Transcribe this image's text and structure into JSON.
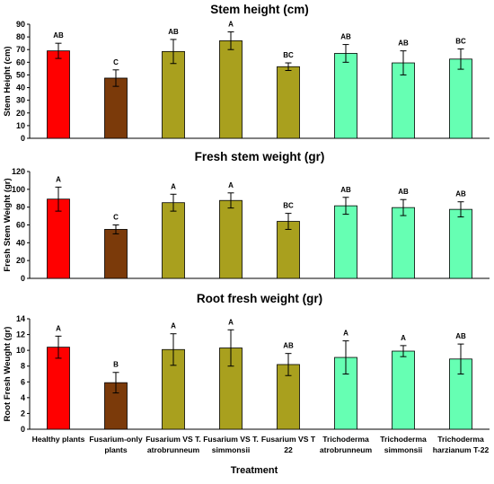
{
  "categories": [
    [
      "Healthy plants"
    ],
    [
      "Fusarium-only",
      "plants"
    ],
    [
      "Fusarium VS T.",
      "atrobrunneum"
    ],
    [
      "Fusarium VS T.",
      "simmonsii"
    ],
    [
      "Fusarium VS T",
      "22"
    ],
    [
      "Trichoderma",
      "atrobrunneum"
    ],
    [
      "Trichoderma",
      "simmonsii"
    ],
    [
      "Trichoderma",
      "harzianum T-22"
    ]
  ],
  "colors": [
    "#ff0000",
    "#7b3a0a",
    "#a9a01e",
    "#a9a01e",
    "#a9a01e",
    "#66ffb3",
    "#66ffb3",
    "#66ffb3"
  ],
  "xlabel": "Treatment",
  "chart_data": [
    {
      "type": "bar",
      "title": "Stem height (cm)",
      "ylabel": "Stem Height (cm)",
      "ylim": [
        0,
        90
      ],
      "yticks": [
        0,
        10,
        20,
        30,
        40,
        50,
        60,
        70,
        80,
        90
      ],
      "values": [
        69,
        47.5,
        68.5,
        77,
        56.5,
        67,
        59.5,
        62.5
      ],
      "errors": [
        6,
        6.5,
        9.5,
        7,
        3,
        7,
        9.5,
        8
      ],
      "letters": [
        "AB",
        "C",
        "AB",
        "A",
        "BC",
        "AB",
        "AB",
        "BC"
      ]
    },
    {
      "type": "bar",
      "title": "Fresh stem weight  (gr)",
      "ylabel": "Fresh Stem Weight (gr)",
      "ylim": [
        0,
        120
      ],
      "yticks": [
        0,
        20,
        40,
        60,
        80,
        100,
        120
      ],
      "values": [
        89,
        55,
        85,
        87.5,
        64,
        81.5,
        79.5,
        77.5
      ],
      "errors": [
        13.5,
        5,
        9.5,
        8.5,
        9,
        9.5,
        9,
        8.5
      ],
      "letters": [
        "A",
        "C",
        "A",
        "A",
        "BC",
        "AB",
        "AB",
        "AB"
      ]
    },
    {
      "type": "bar",
      "title": "Root fresh weight  (gr)",
      "ylabel": "Root Fresh Weught (gr)",
      "ylim": [
        0,
        14
      ],
      "yticks": [
        0,
        2,
        4,
        6,
        8,
        10,
        12,
        14
      ],
      "values": [
        10.4,
        5.9,
        10.1,
        10.3,
        8.2,
        9.1,
        9.9,
        8.9
      ],
      "errors": [
        1.4,
        1.3,
        2.0,
        2.3,
        1.4,
        2.1,
        0.7,
        1.9
      ],
      "letters": [
        "A",
        "B",
        "A",
        "A",
        "AB",
        "A",
        "A",
        "AB"
      ]
    }
  ]
}
